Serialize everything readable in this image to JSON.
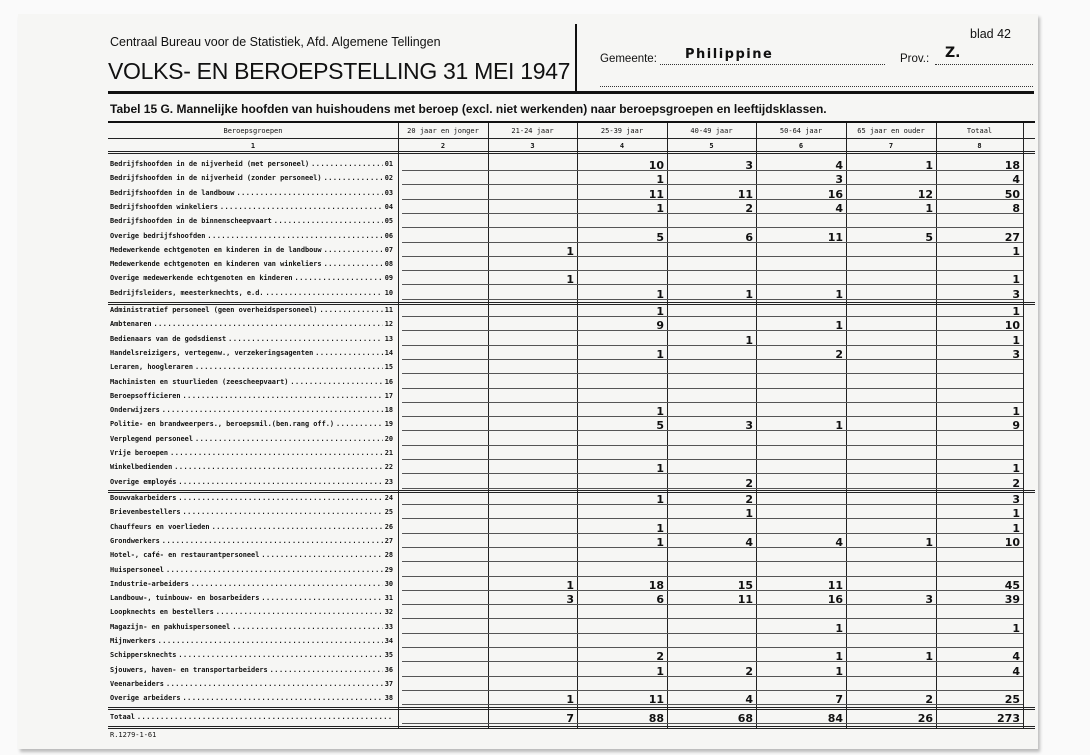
{
  "header": {
    "institution": "Centraal Bureau voor de Statistiek, Afd. Algemene Tellingen",
    "title": "VOLKS- EN BEROEPSTELLING 31 MEI 1947",
    "sheet": "blad 42",
    "municipality_label": "Gemeente:",
    "municipality_value": "Philippine",
    "province_label": "Prov.:",
    "province_value": "Z."
  },
  "caption": "Tabel 15 G. Mannelijke hoofden van huishoudens met beroep (excl. niet werkenden) naar beroepsgroepen en leeftijdsklassen.",
  "columns": [
    {
      "label": "Beroepsgroepen",
      "number": "1"
    },
    {
      "label": "20 jaar en jonger",
      "number": "2"
    },
    {
      "label": "21-24 jaar",
      "number": "3"
    },
    {
      "label": "25-39 jaar",
      "number": "4"
    },
    {
      "label": "40-49 jaar",
      "number": "5"
    },
    {
      "label": "50-64 jaar",
      "number": "6"
    },
    {
      "label": "65 jaar en ouder",
      "number": "7"
    },
    {
      "label": "Totaal",
      "number": "8"
    }
  ],
  "sections": [
    {
      "rows": [
        {
          "label": "Bedrijfshoofden in de nijverheid (met personeel)",
          "code": "01",
          "values": [
            "",
            "",
            "10",
            "3",
            "4",
            "1",
            "18"
          ]
        },
        {
          "label": "Bedrijfshoofden in de nijverheid (zonder personeel)",
          "code": "02",
          "values": [
            "",
            "",
            "1",
            "",
            "3",
            "",
            "4"
          ]
        },
        {
          "label": "Bedrijfshoofden in de landbouw",
          "code": "03",
          "values": [
            "",
            "",
            "11",
            "11",
            "16",
            "12",
            "50"
          ]
        },
        {
          "label": "Bedrijfshoofden winkeliers",
          "code": "04",
          "values": [
            "",
            "",
            "1",
            "2",
            "4",
            "1",
            "8"
          ]
        },
        {
          "label": "Bedrijfshoofden in de binnenscheepvaart",
          "code": "05",
          "values": [
            "",
            "",
            "",
            "",
            "",
            "",
            ""
          ]
        },
        {
          "label": "Overige bedrijfshoofden",
          "code": "06",
          "values": [
            "",
            "",
            "5",
            "6",
            "11",
            "5",
            "27"
          ]
        },
        {
          "label": "Medewerkende echtgenoten en kinderen in de landbouw",
          "code": "07",
          "values": [
            "",
            "1",
            "",
            "",
            "",
            "",
            "1"
          ]
        },
        {
          "label": "Medewerkende echtgenoten en kinderen van winkeliers",
          "code": "08",
          "values": [
            "",
            "",
            "",
            "",
            "",
            "",
            ""
          ]
        },
        {
          "label": "Overige medewerkende echtgenoten en kinderen",
          "code": "09",
          "values": [
            "",
            "1",
            "",
            "",
            "",
            "",
            "1"
          ]
        },
        {
          "label": "Bedrijfsleiders, meesterknechts, e.d.",
          "code": "10",
          "values": [
            "",
            "",
            "1",
            "1",
            "1",
            "",
            "3"
          ]
        }
      ]
    },
    {
      "rows": [
        {
          "label": "Administratief personeel (geen overheidspersoneel)",
          "code": "11",
          "values": [
            "",
            "",
            "1",
            "",
            "",
            "",
            "1"
          ]
        },
        {
          "label": "Ambtenaren",
          "code": "12",
          "values": [
            "",
            "",
            "9",
            "",
            "1",
            "",
            "10"
          ]
        },
        {
          "label": "Bedienaars van de godsdienst",
          "code": "13",
          "values": [
            "",
            "",
            "",
            "1",
            "",
            "",
            "1"
          ]
        },
        {
          "label": "Handelsreizigers, vertegenw., verzekeringsagenten",
          "code": "14",
          "values": [
            "",
            "",
            "1",
            "",
            "2",
            "",
            "3"
          ]
        },
        {
          "label": "Leraren, hoogleraren",
          "code": "15",
          "values": [
            "",
            "",
            "",
            "",
            "",
            "",
            ""
          ]
        },
        {
          "label": "Machinisten en stuurlieden (zeescheepvaart)",
          "code": "16",
          "values": [
            "",
            "",
            "",
            "",
            "",
            "",
            ""
          ]
        },
        {
          "label": "Beroepsofficieren",
          "code": "17",
          "values": [
            "",
            "",
            "",
            "",
            "",
            "",
            ""
          ]
        },
        {
          "label": "Onderwijzers",
          "code": "18",
          "values": [
            "",
            "",
            "1",
            "",
            "",
            "",
            "1"
          ]
        },
        {
          "label": "Politie- en brandweerpers., beroepsmil.(ben.rang off.)",
          "code": "19",
          "values": [
            "",
            "",
            "5",
            "3",
            "1",
            "",
            "9"
          ]
        },
        {
          "label": "Verplegend personeel",
          "code": "20",
          "values": [
            "",
            "",
            "",
            "",
            "",
            "",
            ""
          ]
        },
        {
          "label": "Vrije beroepen",
          "code": "21",
          "values": [
            "",
            "",
            "",
            "",
            "",
            "",
            ""
          ]
        },
        {
          "label": "Winkelbedienden",
          "code": "22",
          "values": [
            "",
            "",
            "1",
            "",
            "",
            "",
            "1"
          ]
        },
        {
          "label": "Overige employés",
          "code": "23",
          "values": [
            "",
            "",
            "",
            "2",
            "",
            "",
            "2"
          ]
        }
      ]
    },
    {
      "rows": [
        {
          "label": "Bouwvakarbeiders",
          "code": "24",
          "values": [
            "",
            "",
            "1",
            "2",
            "",
            "",
            "3"
          ]
        },
        {
          "label": "Brievenbestellers",
          "code": "25",
          "values": [
            "",
            "",
            "",
            "1",
            "",
            "",
            "1"
          ]
        },
        {
          "label": "Chauffeurs en voerlieden",
          "code": "26",
          "values": [
            "",
            "",
            "1",
            "",
            "",
            "",
            "1"
          ]
        },
        {
          "label": "Grondwerkers",
          "code": "27",
          "values": [
            "",
            "",
            "1",
            "4",
            "4",
            "1",
            "10"
          ]
        },
        {
          "label": "Hotel-, café- en restaurantpersoneel",
          "code": "28",
          "values": [
            "",
            "",
            "",
            "",
            "",
            "",
            ""
          ]
        },
        {
          "label": "Huispersoneel",
          "code": "29",
          "values": [
            "",
            "",
            "",
            "",
            "",
            "",
            ""
          ]
        },
        {
          "label": "Industrie-arbeiders",
          "code": "30",
          "values": [
            "",
            "1",
            "18",
            "15",
            "11",
            "",
            "45"
          ]
        },
        {
          "label": "Landbouw-, tuinbouw- en bosarbeiders",
          "code": "31",
          "values": [
            "",
            "3",
            "6",
            "11",
            "16",
            "3",
            "39"
          ]
        },
        {
          "label": "Loopknechts en bestellers",
          "code": "32",
          "values": [
            "",
            "",
            "",
            "",
            "",
            "",
            ""
          ]
        },
        {
          "label": "Magazijn- en pakhuispersoneel",
          "code": "33",
          "values": [
            "",
            "",
            "",
            "",
            "1",
            "",
            "1"
          ]
        },
        {
          "label": "Mijnwerkers",
          "code": "34",
          "values": [
            "",
            "",
            "",
            "",
            "",
            "",
            ""
          ]
        },
        {
          "label": "Schippersknechts",
          "code": "35",
          "values": [
            "",
            "",
            "2",
            "",
            "1",
            "1",
            "4"
          ]
        },
        {
          "label": "Sjouwers, haven- en transportarbeiders",
          "code": "36",
          "values": [
            "",
            "",
            "1",
            "2",
            "1",
            "",
            "4"
          ]
        },
        {
          "label": "Veenarbeiders",
          "code": "37",
          "values": [
            "",
            "",
            "",
            "",
            "",
            "",
            ""
          ]
        },
        {
          "label": "Overige arbeiders",
          "code": "38",
          "values": [
            "",
            "1",
            "11",
            "4",
            "7",
            "2",
            "25"
          ]
        }
      ]
    }
  ],
  "total": {
    "label": "Totaal",
    "values": [
      "",
      "7",
      "88",
      "68",
      "84",
      "26",
      "273"
    ]
  },
  "form_code": "R.1279-1-61"
}
